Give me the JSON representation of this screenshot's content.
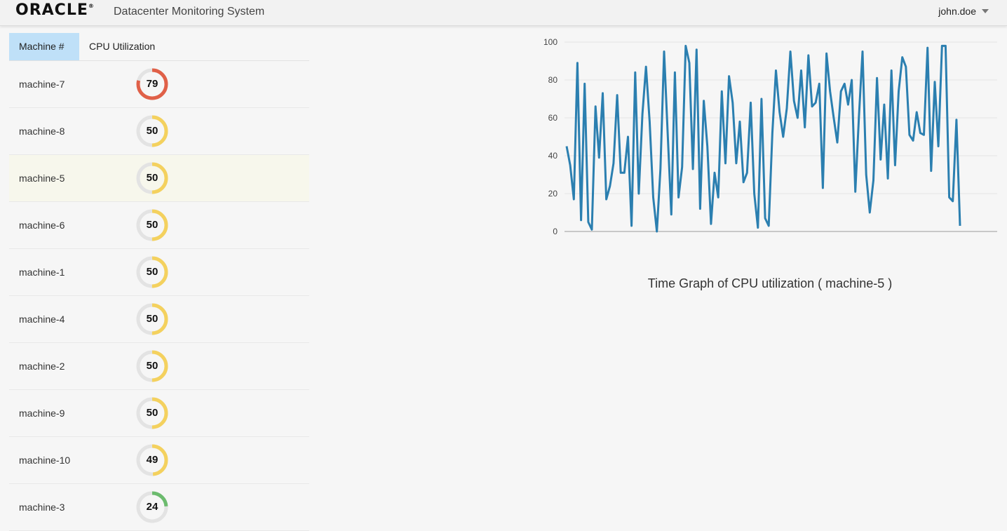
{
  "header": {
    "logo": "ORACLE",
    "logo_mark": "®",
    "title": "Datacenter Monitoring System",
    "user": "john.doe"
  },
  "table": {
    "col_machine": "Machine #",
    "col_cpu": "CPU Utilization",
    "selected_machine": "machine-5",
    "rows": [
      {
        "name": "machine-7",
        "cpu": "79",
        "color": "#e06048"
      },
      {
        "name": "machine-8",
        "cpu": "50",
        "color": "#f4d15e"
      },
      {
        "name": "machine-5",
        "cpu": "50",
        "color": "#f4d15e"
      },
      {
        "name": "machine-6",
        "cpu": "50",
        "color": "#f4d15e"
      },
      {
        "name": "machine-1",
        "cpu": "50",
        "color": "#f4d15e"
      },
      {
        "name": "machine-4",
        "cpu": "50",
        "color": "#f4d15e"
      },
      {
        "name": "machine-2",
        "cpu": "50",
        "color": "#f4d15e"
      },
      {
        "name": "machine-9",
        "cpu": "50",
        "color": "#f4d15e"
      },
      {
        "name": "machine-10",
        "cpu": "49",
        "color": "#f4d15e"
      },
      {
        "name": "machine-3",
        "cpu": "24",
        "color": "#6cbb6e"
      }
    ]
  },
  "chart_title": "Time Graph of CPU utilization ( machine-5 )",
  "chart_data": {
    "type": "line",
    "title": "Time Graph of CPU utilization ( machine-5 )",
    "xlabel": "",
    "ylabel": "",
    "ylim": [
      0,
      100
    ],
    "yticks": [
      "0",
      "20",
      "40",
      "60",
      "80",
      "100"
    ],
    "grid": true,
    "line_color": "#2b7fb0",
    "series": [
      {
        "values": [
          45,
          35,
          17,
          89,
          6,
          78,
          5,
          1,
          66,
          39,
          73,
          17,
          24,
          36,
          72,
          31,
          31,
          50,
          3,
          84,
          20,
          62,
          87,
          58,
          18,
          0,
          33,
          95,
          52,
          9,
          84,
          18,
          34,
          98,
          89,
          33,
          96,
          12,
          69,
          45,
          4,
          31,
          18,
          74,
          36,
          82,
          68,
          36,
          58,
          26,
          31,
          68,
          20,
          2,
          70,
          7,
          3,
          52,
          85,
          63,
          50,
          65,
          95,
          69,
          60,
          85,
          55,
          93,
          66,
          68,
          78,
          23,
          94,
          74,
          60,
          47,
          74,
          78,
          67,
          80,
          21,
          61,
          95,
          30,
          10,
          27,
          81,
          38,
          67,
          28,
          85,
          35,
          74,
          92,
          87,
          51,
          48,
          63,
          52,
          51,
          97,
          32,
          79,
          45,
          98,
          98,
          18,
          16,
          59,
          3
        ]
      }
    ]
  }
}
